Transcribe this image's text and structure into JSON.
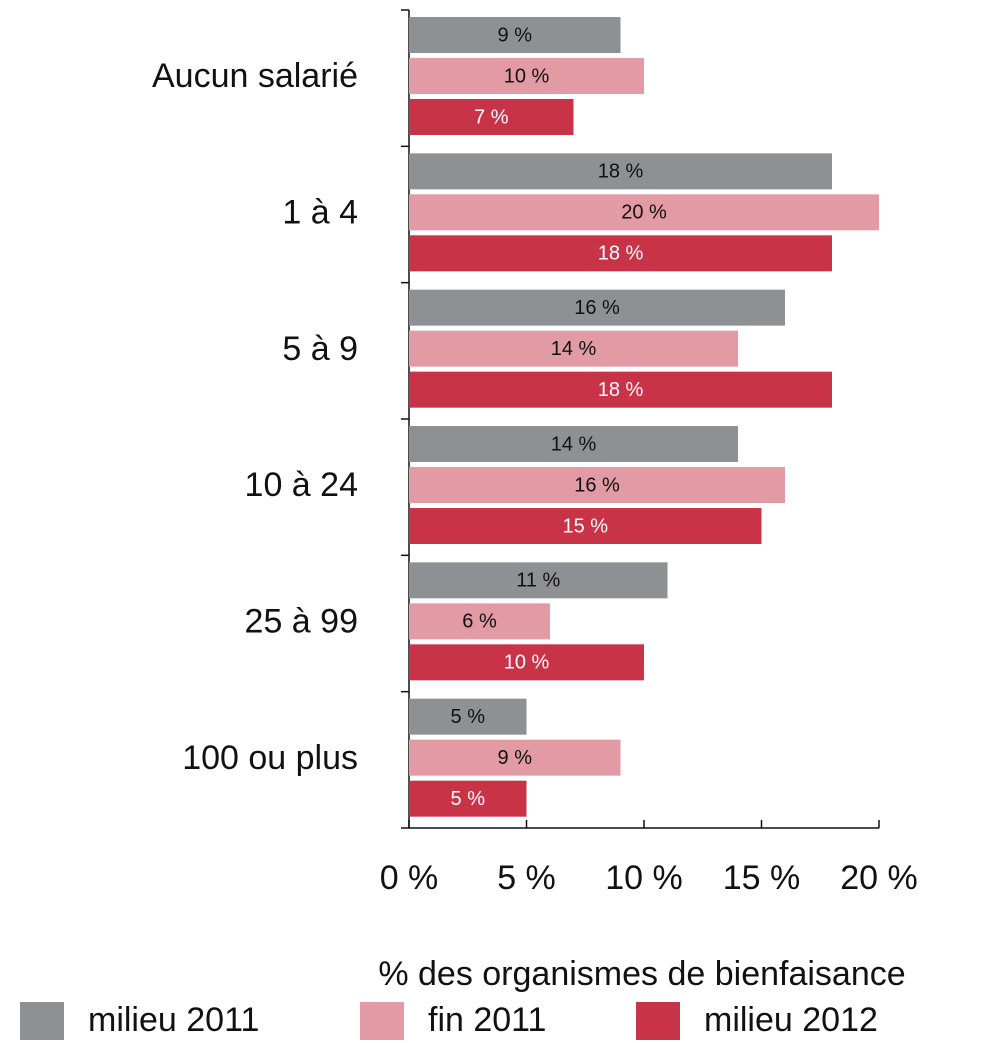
{
  "chart_data": {
    "type": "bar",
    "orientation": "horizontal",
    "xlabel": "% des organismes de bienfaisance",
    "categories": [
      "Aucun salarié",
      "1 à 4",
      "5 à 9",
      "10 à 24",
      "25 à 99",
      "100 ou plus"
    ],
    "series": [
      {
        "name": "milieu 2011",
        "color": "#8e9194",
        "values": [
          9,
          18,
          16,
          14,
          11,
          5
        ],
        "value_labels": [
          "9 %",
          "18 %",
          "16 %",
          "14 %",
          "11 %",
          "5 %"
        ]
      },
      {
        "name": "fin 2011",
        "color": "#e29aa5",
        "values": [
          10,
          20,
          14,
          16,
          6,
          9
        ],
        "value_labels": [
          "10 %",
          "20 %",
          "14 %",
          "16 %",
          "6 %",
          "9 %"
        ]
      },
      {
        "name": "milieu 2012",
        "color": "#c93347",
        "values": [
          7,
          18,
          18,
          15,
          10,
          5
        ],
        "value_labels": [
          "7 %",
          "18 %",
          "18 %",
          "15 %",
          "10 %",
          "5 %"
        ]
      }
    ],
    "xlim": [
      0,
      20
    ],
    "xticks": [
      {
        "value": 0,
        "label": "0 %"
      },
      {
        "value": 5,
        "label": "5 %"
      },
      {
        "value": 10,
        "label": "10 %"
      },
      {
        "value": 15,
        "label": "15 %"
      },
      {
        "value": 20,
        "label": "20 %"
      }
    ],
    "legend": "bottom"
  }
}
